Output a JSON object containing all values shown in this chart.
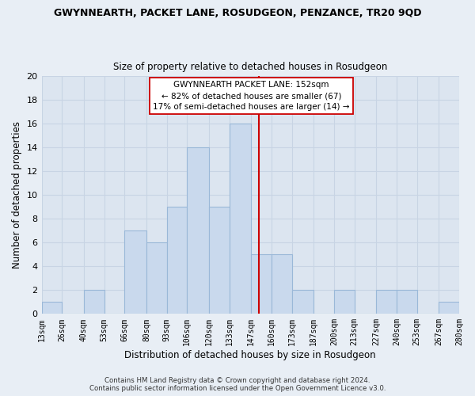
{
  "title": "GWYNNEARTH, PACKET LANE, ROSUDGEON, PENZANCE, TR20 9QD",
  "subtitle": "Size of property relative to detached houses in Rosudgeon",
  "xlabel": "Distribution of detached houses by size in Rosudgeon",
  "ylabel": "Number of detached properties",
  "bar_edges": [
    13,
    26,
    40,
    53,
    66,
    80,
    93,
    106,
    120,
    133,
    147,
    160,
    173,
    187,
    200,
    213,
    227,
    240,
    253,
    267,
    280
  ],
  "bar_heights": [
    1,
    0,
    2,
    0,
    7,
    6,
    9,
    14,
    9,
    16,
    5,
    5,
    2,
    0,
    2,
    0,
    2,
    2,
    0,
    1
  ],
  "bar_color": "#c9d9ed",
  "bar_edgecolor": "#9ab8d8",
  "background_color": "#e8eef5",
  "plot_bg_color": "#dce5f0",
  "vline_x": 152,
  "vline_color": "#cc0000",
  "ylim": [
    0,
    20
  ],
  "annotation_title": "GWYNNEARTH PACKET LANE: 152sqm",
  "annotation_line1": "← 82% of detached houses are smaller (67)",
  "annotation_line2": "17% of semi-detached houses are larger (14) →",
  "annotation_box_color": "#ffffff",
  "annotation_box_edgecolor": "#cc0000",
  "footer1": "Contains HM Land Registry data © Crown copyright and database right 2024.",
  "footer2": "Contains public sector information licensed under the Open Government Licence v3.0.",
  "tick_labels": [
    "13sqm",
    "26sqm",
    "40sqm",
    "53sqm",
    "66sqm",
    "80sqm",
    "93sqm",
    "106sqm",
    "120sqm",
    "133sqm",
    "147sqm",
    "160sqm",
    "173sqm",
    "187sqm",
    "200sqm",
    "213sqm",
    "227sqm",
    "240sqm",
    "253sqm",
    "267sqm",
    "280sqm"
  ],
  "yticks": [
    0,
    2,
    4,
    6,
    8,
    10,
    12,
    14,
    16,
    18,
    20
  ],
  "grid_color": "#c8d4e4"
}
